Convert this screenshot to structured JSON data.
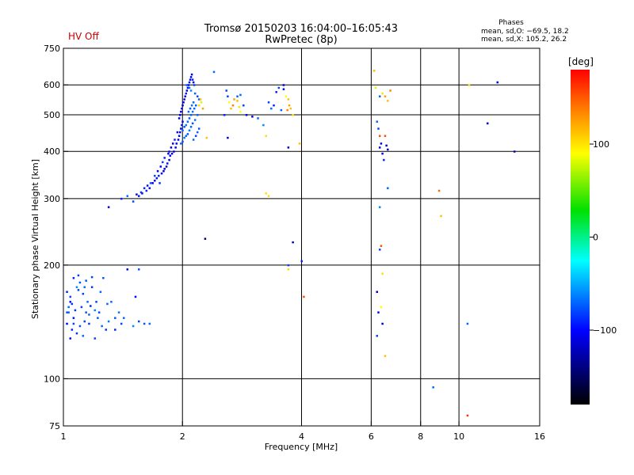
{
  "status": {
    "hv_label": "HV Off",
    "hv_color": "#cc0000"
  },
  "chart_data": {
    "type": "scatter",
    "title": "Tromsø 20150203 16:04:00–16:05:43",
    "subtitle": "RwPretec (8p)",
    "xlabel": "Frequency [MHz]",
    "ylabel": "Stationary phase Virtual Height [km]",
    "xscale": "log",
    "yscale": "log",
    "xlim": [
      1,
      16
    ],
    "ylim": [
      75,
      750
    ],
    "xticks": [
      {
        "value": 1,
        "label": "1"
      },
      {
        "value": 2,
        "label": "2"
      },
      {
        "value": 4,
        "label": "4"
      },
      {
        "value": 6,
        "label": "6"
      },
      {
        "value": 8,
        "label": "8"
      },
      {
        "value": 10,
        "label": "10"
      },
      {
        "value": 16,
        "label": "16"
      }
    ],
    "yticks": [
      {
        "value": 75,
        "label": "75"
      },
      {
        "value": 100,
        "label": "100"
      },
      {
        "value": 200,
        "label": "200"
      },
      {
        "value": 300,
        "label": "300"
      },
      {
        "value": 400,
        "label": "400"
      },
      {
        "value": 500,
        "label": "500"
      },
      {
        "value": 600,
        "label": "600"
      },
      {
        "value": 750,
        "label": "750"
      }
    ],
    "xgrid": [
      2,
      4,
      6,
      8,
      10
    ],
    "ygrid": [
      100,
      200,
      300,
      400,
      500,
      600
    ],
    "legend": {
      "title": "Phases",
      "line1": "mean, sd,O: −69.5, 18.2",
      "line2": "mean, sd,X: 105.2, 26.2"
    },
    "colorbar": {
      "label": "[deg]",
      "range": [
        -180,
        180
      ],
      "ticks": [
        {
          "value": 100,
          "label": "100"
        },
        {
          "value": 0,
          "label": "0"
        },
        {
          "value": -100,
          "label": "−100"
        }
      ]
    },
    "points": [
      [
        1.02,
        170,
        -90
      ],
      [
        1.04,
        165,
        -80
      ],
      [
        1.05,
        158,
        -85
      ],
      [
        1.03,
        150,
        -70
      ],
      [
        1.06,
        145,
        -95
      ],
      [
        1.08,
        175,
        -60
      ],
      [
        1.1,
        180,
        -75
      ],
      [
        1.12,
        168,
        -80
      ],
      [
        1.15,
        160,
        -70
      ],
      [
        1.02,
        140,
        -100
      ],
      [
        1.05,
        135,
        -90
      ],
      [
        1.08,
        132,
        -85
      ],
      [
        1.1,
        138,
        -75
      ],
      [
        1.13,
        142,
        -80
      ],
      [
        1.16,
        148,
        -70
      ],
      [
        1.2,
        152,
        -60
      ],
      [
        1.22,
        145,
        -75
      ],
      [
        1.25,
        138,
        -70
      ],
      [
        1.28,
        135,
        -85
      ],
      [
        1.3,
        142,
        -65
      ],
      [
        1.06,
        185,
        -90
      ],
      [
        1.09,
        188,
        -80
      ],
      [
        1.14,
        182,
        -75
      ],
      [
        1.18,
        175,
        -85
      ],
      [
        1.24,
        170,
        -70
      ],
      [
        1.18,
        186,
        -80
      ],
      [
        1.03,
        155,
        -70
      ],
      [
        1.07,
        152,
        -85
      ],
      [
        1.11,
        155,
        -80
      ],
      [
        1.14,
        150,
        -75
      ],
      [
        1.17,
        156,
        -90
      ],
      [
        1.21,
        160,
        -80
      ],
      [
        1.32,
        160,
        -70
      ],
      [
        1.38,
        150,
        -65
      ],
      [
        1.42,
        145,
        -70
      ],
      [
        1.5,
        138,
        -60
      ],
      [
        1.55,
        142,
        -80
      ],
      [
        1.6,
        140,
        -75
      ],
      [
        1.52,
        165,
        -100
      ],
      [
        1.45,
        195,
        -110
      ],
      [
        1.55,
        195,
        -75
      ],
      [
        1.04,
        128,
        -100
      ],
      [
        1.12,
        130,
        -70
      ],
      [
        1.2,
        128,
        -80
      ],
      [
        1.35,
        135,
        -90
      ],
      [
        1.4,
        140,
        -80
      ],
      [
        1.65,
        140,
        -70
      ],
      [
        1.04,
        160,
        -95
      ],
      [
        1.09,
        172,
        -80
      ],
      [
        1.13,
        175,
        -70
      ],
      [
        1.26,
        185,
        -75
      ],
      [
        1.29,
        158,
        -70
      ],
      [
        1.35,
        145,
        -75
      ],
      [
        1.02,
        150,
        -75
      ],
      [
        1.06,
        140,
        -80
      ],
      [
        1.16,
        140,
        -85
      ],
      [
        1.23,
        150,
        -80
      ],
      [
        1.3,
        285,
        -110
      ],
      [
        1.4,
        300,
        -90
      ],
      [
        1.45,
        305,
        -70
      ],
      [
        1.5,
        295,
        -80
      ],
      [
        1.55,
        305,
        -95
      ],
      [
        1.58,
        310,
        -100
      ],
      [
        1.62,
        315,
        -90
      ],
      [
        1.65,
        320,
        -100
      ],
      [
        1.68,
        330,
        -110
      ],
      [
        1.7,
        335,
        -100
      ],
      [
        1.72,
        340,
        -95
      ],
      [
        1.74,
        345,
        -90
      ],
      [
        1.75,
        330,
        -85
      ],
      [
        1.77,
        350,
        -100
      ],
      [
        1.79,
        355,
        -110
      ],
      [
        1.8,
        360,
        -100
      ],
      [
        1.82,
        365,
        -105
      ],
      [
        1.83,
        372,
        -95
      ],
      [
        1.85,
        380,
        -110
      ],
      [
        1.86,
        390,
        -100
      ],
      [
        1.88,
        395,
        -105
      ],
      [
        1.9,
        400,
        -110
      ],
      [
        1.92,
        410,
        -100
      ],
      [
        1.93,
        420,
        -115
      ],
      [
        1.95,
        430,
        -105
      ],
      [
        1.96,
        440,
        -100
      ],
      [
        1.97,
        450,
        -110
      ],
      [
        1.98,
        460,
        -100
      ],
      [
        1.99,
        470,
        -95
      ],
      [
        2.0,
        480,
        -100
      ],
      [
        1.96,
        490,
        -110
      ],
      [
        1.97,
        500,
        -105
      ],
      [
        1.98,
        510,
        -100
      ],
      [
        1.99,
        520,
        -110
      ],
      [
        2.0,
        530,
        -120
      ],
      [
        2.01,
        540,
        -100
      ],
      [
        2.02,
        550,
        -110
      ],
      [
        2.03,
        560,
        -100
      ],
      [
        2.04,
        570,
        -90
      ],
      [
        2.05,
        580,
        -110
      ],
      [
        2.06,
        590,
        -100
      ],
      [
        2.07,
        600,
        -105
      ],
      [
        2.08,
        610,
        -95
      ],
      [
        2.09,
        620,
        -100
      ],
      [
        2.1,
        630,
        -110
      ],
      [
        2.11,
        640,
        -100
      ],
      [
        2.12,
        620,
        -90
      ],
      [
        2.13,
        610,
        -100
      ],
      [
        2.14,
        600,
        -80
      ],
      [
        1.94,
        450,
        -100
      ],
      [
        1.91,
        430,
        -90
      ],
      [
        1.89,
        420,
        -100
      ],
      [
        1.87,
        410,
        -110
      ],
      [
        1.85,
        400,
        -95
      ],
      [
        1.84,
        395,
        -100
      ],
      [
        1.8,
        385,
        -90
      ],
      [
        1.78,
        375,
        -80
      ],
      [
        1.76,
        365,
        -100
      ],
      [
        1.73,
        355,
        -100
      ],
      [
        1.7,
        345,
        -80
      ],
      [
        1.66,
        330,
        -75
      ],
      [
        1.63,
        325,
        -95
      ],
      [
        1.6,
        320,
        -90
      ],
      [
        1.57,
        312,
        -85
      ],
      [
        1.53,
        308,
        -100
      ],
      [
        2.0,
        455,
        -70
      ],
      [
        2.02,
        465,
        -75
      ],
      [
        2.04,
        470,
        -65
      ],
      [
        2.06,
        480,
        -70
      ],
      [
        2.08,
        490,
        -75
      ],
      [
        2.1,
        500,
        -70
      ],
      [
        2.12,
        510,
        -65
      ],
      [
        2.14,
        520,
        -70
      ],
      [
        2.16,
        530,
        -75
      ],
      [
        2.18,
        500,
        -70
      ],
      [
        2.15,
        485,
        -65
      ],
      [
        2.12,
        475,
        -75
      ],
      [
        2.1,
        465,
        -70
      ],
      [
        2.08,
        455,
        -65
      ],
      [
        2.06,
        445,
        -75
      ],
      [
        2.04,
        440,
        -70
      ],
      [
        2.02,
        435,
        -65
      ],
      [
        2.0,
        425,
        -75
      ],
      [
        1.98,
        420,
        -70
      ],
      [
        2.05,
        600,
        -75
      ],
      [
        2.08,
        590,
        -70
      ],
      [
        2.1,
        580,
        -60
      ],
      [
        2.15,
        570,
        -70
      ],
      [
        2.18,
        560,
        -80
      ],
      [
        2.2,
        550,
        -75
      ],
      [
        2.13,
        540,
        -70
      ],
      [
        2.11,
        530,
        -65
      ],
      [
        2.09,
        520,
        -75
      ],
      [
        2.07,
        510,
        -70
      ],
      [
        2.18,
        450,
        -70
      ],
      [
        2.2,
        460,
        -75
      ],
      [
        2.16,
        440,
        -80
      ],
      [
        2.13,
        430,
        -70
      ],
      [
        2.22,
        550,
        110
      ],
      [
        2.25,
        520,
        120
      ],
      [
        2.2,
        530,
        100
      ],
      [
        2.23,
        540,
        80
      ],
      [
        2.3,
        435,
        110
      ],
      [
        2.4,
        650,
        -70
      ],
      [
        2.28,
        235,
        -150
      ],
      [
        2.55,
        500,
        -90
      ],
      [
        2.6,
        560,
        -80
      ],
      [
        2.62,
        540,
        90
      ],
      [
        2.65,
        520,
        110
      ],
      [
        2.68,
        530,
        130
      ],
      [
        2.7,
        550,
        120
      ],
      [
        2.75,
        545,
        110
      ],
      [
        2.78,
        525,
        100
      ],
      [
        2.8,
        510,
        90
      ],
      [
        2.75,
        560,
        -70
      ],
      [
        2.58,
        580,
        -80
      ],
      [
        2.6,
        435,
        -110
      ],
      [
        2.8,
        565,
        -70
      ],
      [
        2.85,
        530,
        -80
      ],
      [
        2.9,
        500,
        -100
      ],
      [
        3.0,
        495,
        -110
      ],
      [
        3.1,
        490,
        -70
      ],
      [
        3.2,
        470,
        -60
      ],
      [
        3.25,
        440,
        100
      ],
      [
        3.3,
        540,
        -80
      ],
      [
        3.35,
        520,
        -70
      ],
      [
        3.4,
        530,
        -90
      ],
      [
        3.45,
        575,
        -90
      ],
      [
        3.5,
        590,
        -80
      ],
      [
        3.6,
        585,
        -100
      ],
      [
        3.7,
        550,
        110
      ],
      [
        3.72,
        530,
        120
      ],
      [
        3.75,
        520,
        110
      ],
      [
        3.65,
        560,
        90
      ],
      [
        3.68,
        515,
        130
      ],
      [
        3.8,
        500,
        100
      ],
      [
        3.55,
        515,
        -70
      ],
      [
        3.6,
        600,
        -110
      ],
      [
        3.7,
        410,
        -110
      ],
      [
        3.25,
        310,
        100
      ],
      [
        3.3,
        305,
        100
      ],
      [
        3.8,
        230,
        -120
      ],
      [
        3.7,
        200,
        -80
      ],
      [
        3.7,
        195,
        100
      ],
      [
        3.95,
        420,
        110
      ],
      [
        4.0,
        205,
        -90
      ],
      [
        4.05,
        165,
        150
      ],
      [
        6.1,
        655,
        110
      ],
      [
        6.15,
        590,
        80
      ],
      [
        6.2,
        480,
        -70
      ],
      [
        6.25,
        460,
        -80
      ],
      [
        6.3,
        440,
        150
      ],
      [
        6.35,
        420,
        -110
      ],
      [
        6.3,
        410,
        -100
      ],
      [
        6.4,
        395,
        -100
      ],
      [
        6.45,
        380,
        -90
      ],
      [
        6.5,
        440,
        150
      ],
      [
        6.55,
        415,
        -110
      ],
      [
        6.6,
        405,
        -120
      ],
      [
        6.6,
        320,
        -70
      ],
      [
        6.3,
        285,
        -60
      ],
      [
        6.35,
        225,
        150
      ],
      [
        6.3,
        220,
        -80
      ],
      [
        6.4,
        190,
        100
      ],
      [
        6.2,
        170,
        -120
      ],
      [
        6.35,
        155,
        90
      ],
      [
        6.25,
        150,
        -100
      ],
      [
        6.4,
        140,
        -120
      ],
      [
        6.2,
        130,
        -80
      ],
      [
        6.5,
        115,
        110
      ],
      [
        6.4,
        570,
        100
      ],
      [
        6.5,
        560,
        120
      ],
      [
        6.6,
        545,
        110
      ],
      [
        6.3,
        560,
        -70
      ],
      [
        6.7,
        580,
        130
      ],
      [
        8.9,
        315,
        140
      ],
      [
        9.0,
        270,
        110
      ],
      [
        8.6,
        95,
        -70
      ],
      [
        10.5,
        140,
        -70
      ],
      [
        10.6,
        600,
        100
      ],
      [
        10.5,
        80,
        160
      ],
      [
        11.8,
        475,
        -120
      ],
      [
        12.5,
        610,
        -110
      ],
      [
        13.8,
        400,
        -120
      ]
    ]
  }
}
